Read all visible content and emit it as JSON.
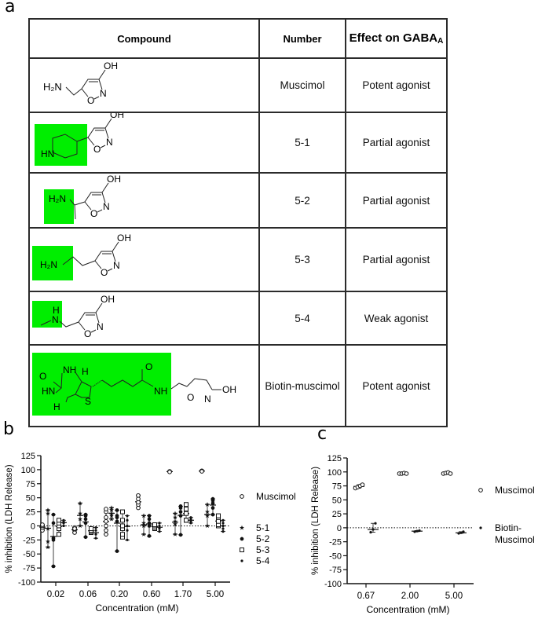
{
  "panels": {
    "a": "a",
    "b": "b",
    "c": "c"
  },
  "table": {
    "headers": {
      "compound": "Compound",
      "number": "Number",
      "effect_main": "Effect on GABA",
      "effect_sub": "A"
    },
    "rows": [
      {
        "number": "Muscimol",
        "effect": "Potent agonist",
        "structure": "muscimol",
        "highlight": false
      },
      {
        "number": "5-1",
        "effect": "Partial agonist",
        "structure": "piperidinyl-isoxazolol",
        "highlight": true
      },
      {
        "number": "5-2",
        "effect": "Partial agonist",
        "structure": "aminoethyl-isoxazolol",
        "highlight": true
      },
      {
        "number": "5-3",
        "effect": "Partial agonist",
        "structure": "homomuscimol",
        "highlight": true
      },
      {
        "number": "5-4",
        "effect": "Weak agonist",
        "structure": "N-methyl-muscimol",
        "highlight": true
      },
      {
        "number": "Biotin-muscimol",
        "effect": "Potent agonist",
        "structure": "biotin-muscimol",
        "highlight": true
      }
    ],
    "highlight_color": "#00ee00",
    "atom_labels": {
      "oh": "OH",
      "n": "N",
      "o": "O",
      "h2n": "H₂N",
      "hn": "HN",
      "h": "H",
      "nh": "NH",
      "s": "S"
    }
  },
  "chart_data": [
    {
      "id": "b",
      "type": "scatter",
      "title": "",
      "xlabel": "Concentration (mM)",
      "ylabel": "% inhibition (LDH Release)",
      "ylim": [
        -100,
        125
      ],
      "yticks": [
        "125",
        "100",
        "75",
        "50",
        "25",
        "0",
        "-25",
        "-50",
        "-75",
        "-100"
      ],
      "categories": [
        "0.02",
        "0.06",
        "0.20",
        "0.60",
        "1.70",
        "5.00"
      ],
      "reference_line": 0,
      "legend_position": "right",
      "series": [
        {
          "name": "Muscimol",
          "marker": "open-circle",
          "values": [
            [
              1,
              -5,
              -8,
              -3,
              0,
              2
            ],
            [
              -8,
              -12,
              -6,
              -3,
              -5
            ],
            [
              -15,
              -8,
              0,
              8,
              15,
              25,
              30
            ],
            [
              32,
              38,
              42,
              48,
              54
            ],
            [
              97,
              96
            ],
            [
              98,
              97
            ]
          ]
        },
        {
          "name": "5-1",
          "marker": "star",
          "values": [
            [
              -38,
              -28,
              -5,
              22,
              28
            ],
            [
              0,
              12,
              22,
              40
            ],
            [
              12,
              18,
              22,
              28,
              32
            ],
            [
              -15,
              0,
              5,
              18
            ],
            [
              -15,
              3,
              8,
              15,
              22
            ],
            [
              0,
              18,
              25,
              38
            ]
          ]
        },
        {
          "name": "5-2",
          "marker": "filled-circle",
          "values": [
            [
              -72,
              -25,
              -22,
              5,
              20
            ],
            [
              -20,
              5,
              12,
              18,
              20
            ],
            [
              -45,
              8,
              15,
              18,
              28
            ],
            [
              -18,
              0,
              5,
              12,
              18
            ],
            [
              -16,
              18,
              25,
              32,
              35
            ],
            [
              20,
              32,
              40,
              45,
              48
            ]
          ]
        },
        {
          "name": "5-3",
          "marker": "open-square",
          "values": [
            [
              -15,
              -5,
              0,
              5,
              10
            ],
            [
              -12,
              -10,
              -8,
              -5
            ],
            [
              -20,
              -15,
              -5,
              0,
              10,
              25
            ],
            [
              -5,
              -3,
              0,
              2
            ],
            [
              10,
              10,
              22,
              30,
              38
            ],
            [
              0,
              2,
              8,
              15,
              18
            ]
          ]
        },
        {
          "name": "5-4",
          "marker": "small-dot",
          "values": [
            [
              0,
              5,
              8,
              10
            ],
            [
              -22,
              -15,
              -8,
              -3
            ],
            [
              -25,
              -8,
              0,
              10,
              18
            ],
            [
              -10,
              -5,
              0,
              5
            ],
            [
              5,
              8,
              12,
              15
            ],
            [
              -10,
              -5,
              0,
              5,
              10
            ]
          ]
        }
      ]
    },
    {
      "id": "c",
      "type": "scatter",
      "title": "",
      "xlabel": "Concentration (mM)",
      "ylabel": "% inhibition (LDH Release)",
      "ylim": [
        -100,
        125
      ],
      "yticks": [
        "125",
        "100",
        "75",
        "50",
        "25",
        "0",
        "-25",
        "-50",
        "-75",
        "-100"
      ],
      "categories": [
        "0.67",
        "2.00",
        "5.00"
      ],
      "reference_line": 0,
      "legend_position": "right",
      "series": [
        {
          "name": "Muscimol",
          "marker": "open-circle",
          "values": [
            [
              71,
              73,
              75,
              77
            ],
            [
              97,
              97,
              98,
              97
            ],
            [
              97,
              98,
              99,
              97
            ]
          ],
          "means": [
            74,
            97,
            98
          ]
        },
        {
          "name": "Biotin-Muscimol",
          "legend_lines": [
            "Biotin-",
            "Muscimol"
          ],
          "marker": "filled-dot",
          "values": [
            [
              -8,
              -3,
              8
            ],
            [
              -7,
              -6,
              -5
            ],
            [
              -10,
              -9,
              -7
            ]
          ],
          "means": [
            -3,
            -6,
            -9
          ]
        }
      ]
    }
  ]
}
